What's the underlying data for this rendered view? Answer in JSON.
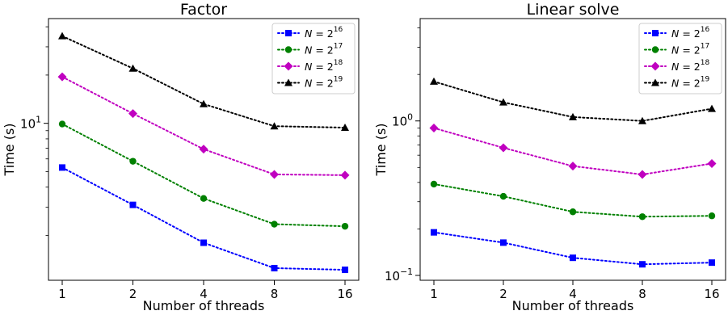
{
  "chart_data": [
    {
      "type": "line",
      "title": "Factor",
      "xlabel": "Number of threads",
      "ylabel": "Time (s)",
      "x_scale": "log2",
      "y_scale": "log",
      "x": [
        1,
        2,
        4,
        8,
        16
      ],
      "xticks": [
        "1",
        "2",
        "4",
        "8",
        "16"
      ],
      "yticks": [
        {
          "value": 10,
          "label": "10^1"
        }
      ],
      "ylim": [
        1.05,
        45
      ],
      "grid": false,
      "legend_position": "top-right",
      "series": [
        {
          "name": "N = 2^16",
          "color": "#0000ff",
          "marker": "square",
          "values": [
            5.3,
            3.1,
            1.8,
            1.25,
            1.22
          ]
        },
        {
          "name": "N = 2^17",
          "color": "#008000",
          "marker": "circle",
          "values": [
            9.9,
            5.8,
            3.4,
            2.35,
            2.28
          ]
        },
        {
          "name": "N = 2^18",
          "color": "#c000c0",
          "marker": "diamond",
          "values": [
            19.5,
            11.5,
            6.9,
            4.8,
            4.75
          ]
        },
        {
          "name": "N = 2^19",
          "color": "#000000",
          "marker": "triangle",
          "values": [
            35,
            22,
            13.2,
            9.6,
            9.4
          ]
        }
      ]
    },
    {
      "type": "line",
      "title": "Linear solve",
      "xlabel": "Number of threads",
      "ylabel": "Time (s)",
      "x_scale": "log2",
      "y_scale": "log",
      "x": [
        1,
        2,
        4,
        8,
        16
      ],
      "xticks": [
        "1",
        "2",
        "4",
        "8",
        "16"
      ],
      "yticks": [
        {
          "value": 1,
          "label": "10^0"
        },
        {
          "value": 0.1,
          "label": "10^-1"
        }
      ],
      "ylim": [
        0.093,
        4.6
      ],
      "grid": false,
      "legend_position": "top-right",
      "series": [
        {
          "name": "N = 2^16",
          "color": "#0000ff",
          "marker": "square",
          "values": [
            0.19,
            0.163,
            0.13,
            0.118,
            0.121
          ]
        },
        {
          "name": "N = 2^17",
          "color": "#008000",
          "marker": "circle",
          "values": [
            0.39,
            0.325,
            0.258,
            0.24,
            0.243
          ]
        },
        {
          "name": "N = 2^18",
          "color": "#c000c0",
          "marker": "diamond",
          "values": [
            0.9,
            0.67,
            0.51,
            0.45,
            0.53
          ]
        },
        {
          "name": "N = 2^19",
          "color": "#000000",
          "marker": "triangle",
          "values": [
            1.8,
            1.32,
            1.06,
            1.0,
            1.2
          ]
        }
      ]
    }
  ]
}
